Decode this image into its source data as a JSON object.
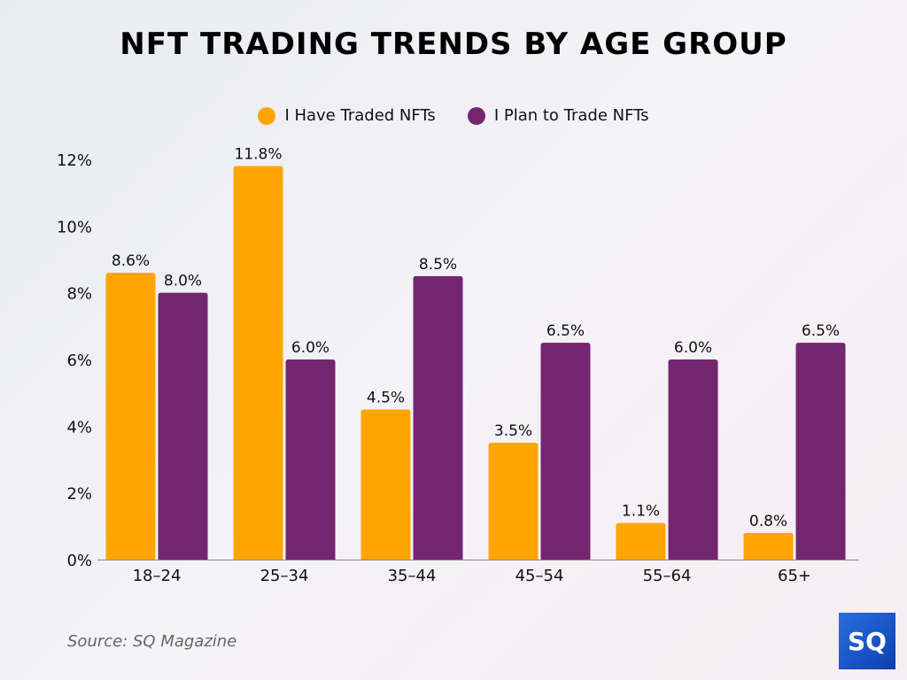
{
  "chart_data": {
    "type": "bar",
    "title": "NFT TRADING TRENDS BY AGE GROUP",
    "categories": [
      "18–24",
      "25–34",
      "35–44",
      "45–54",
      "55–64",
      "65+"
    ],
    "series": [
      {
        "name": "I Have Traded NFTs",
        "color": "#FFA500",
        "values": [
          8.6,
          11.8,
          4.5,
          3.5,
          1.1,
          0.8
        ],
        "labels": [
          "8.6%",
          "11.8%",
          "4.5%",
          "3.5%",
          "1.1%",
          "0.8%"
        ]
      },
      {
        "name": "I Plan to Trade NFTs",
        "color": "#73266F",
        "values": [
          8.0,
          6.0,
          8.5,
          6.5,
          6.0,
          6.5
        ],
        "labels": [
          "8.0%",
          "6.0%",
          "8.5%",
          "6.5%",
          "6.0%",
          "6.5%"
        ]
      }
    ],
    "ylim": [
      0,
      12
    ],
    "yticks": [
      "0%",
      "2%",
      "4%",
      "6%",
      "8%",
      "10%",
      "12%"
    ],
    "grid": false,
    "legend_position": "top-center"
  },
  "source": "Source: SQ Magazine",
  "logo_text": "SQ"
}
